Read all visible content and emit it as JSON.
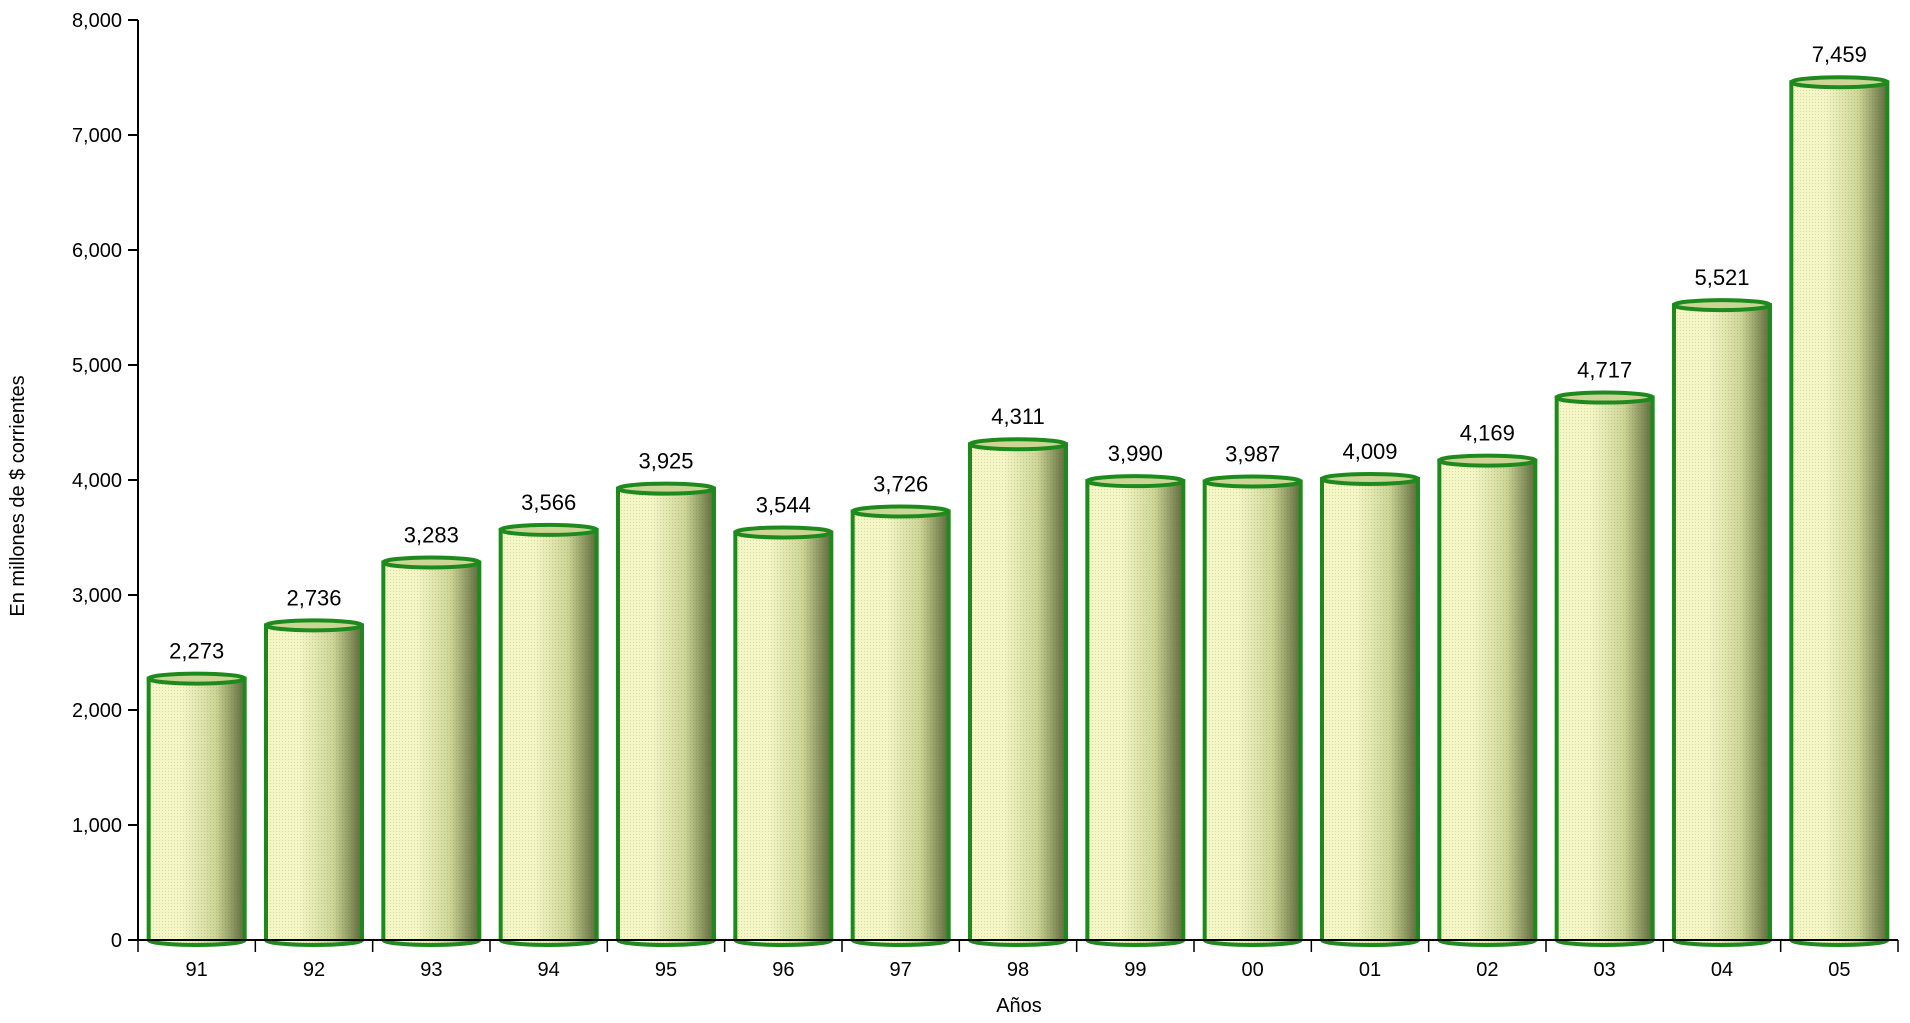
{
  "chart_data": {
    "type": "bar",
    "title": "",
    "xlabel": "Años",
    "ylabel": "En millones de $ corrientes",
    "categories": [
      "91",
      "92",
      "93",
      "94",
      "95",
      "96",
      "97",
      "98",
      "99",
      "00",
      "01",
      "02",
      "03",
      "04",
      "05"
    ],
    "values": [
      2273,
      2736,
      3283,
      3566,
      3925,
      3544,
      3726,
      4311,
      3990,
      3987,
      4009,
      4169,
      4717,
      5521,
      7459
    ],
    "data_labels": [
      "2,273",
      "2,736",
      "3,283",
      "3,566",
      "3,925",
      "3,544",
      "3,726",
      "4,311",
      "3,990",
      "3,987",
      "4,009",
      "4,169",
      "4,717",
      "5,521",
      "7,459"
    ],
    "ylim": [
      0,
      8000
    ],
    "yticks": [
      0,
      1000,
      2000,
      3000,
      4000,
      5000,
      6000,
      7000,
      8000
    ],
    "ytick_labels": [
      "0",
      "1,000",
      "2,000",
      "3,000",
      "4,000",
      "5,000",
      "6,000",
      "7,000",
      "8,000"
    ],
    "grid": false,
    "legend": "none",
    "bar_style": "cylinder",
    "colors": {
      "bar_light": "#f4f6c6",
      "bar_mid": "#cdd596",
      "bar_dark": "#5f6a3c",
      "bar_outline": "#1e8a1e",
      "axis": "#000000"
    }
  }
}
